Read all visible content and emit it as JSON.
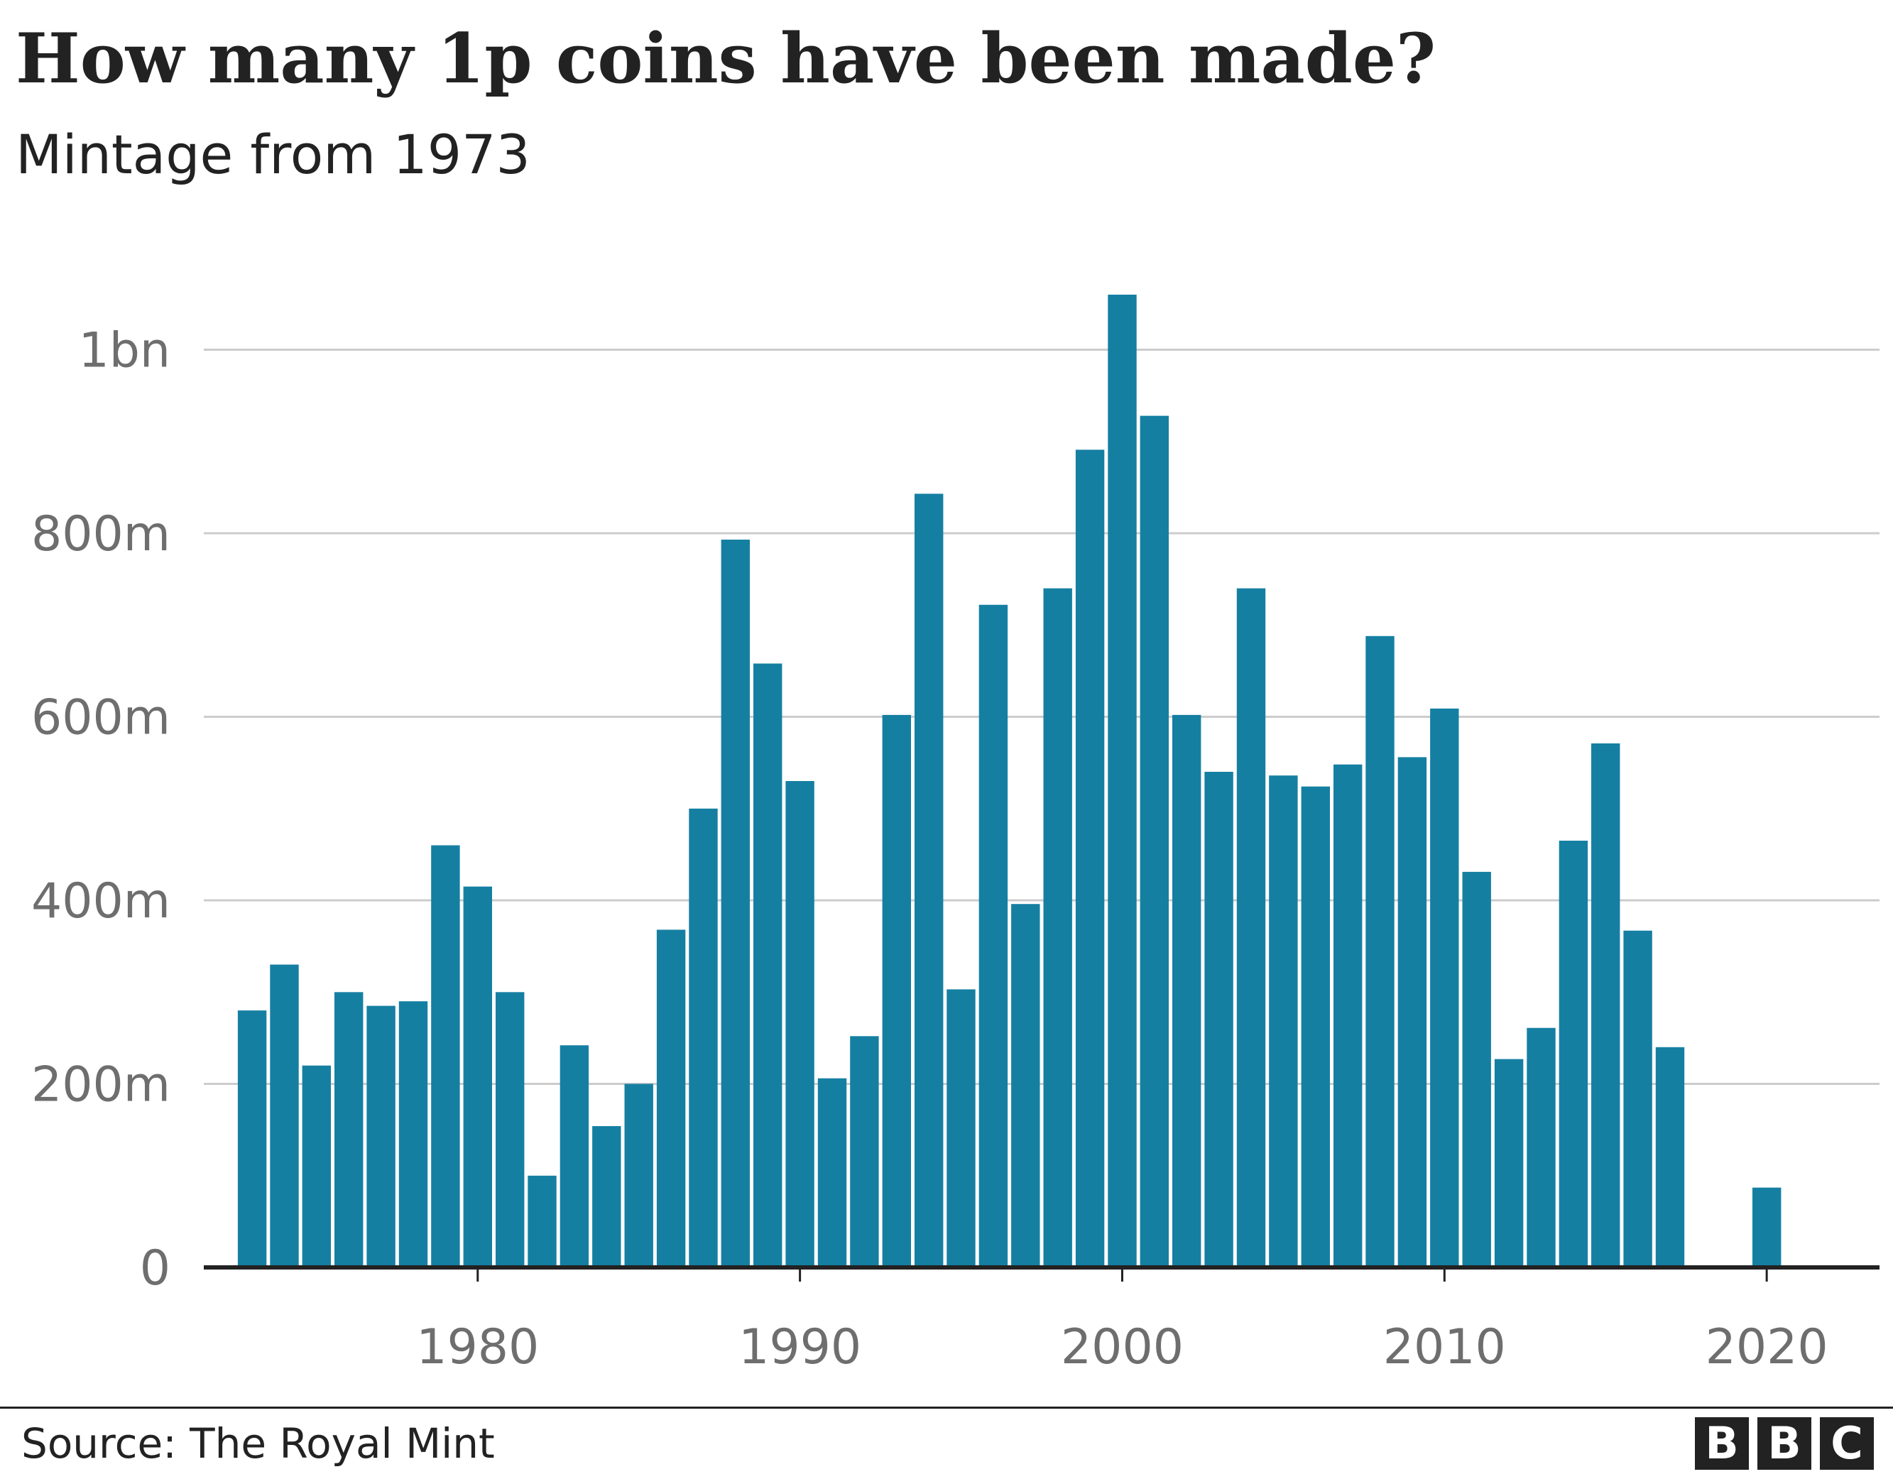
{
  "title": "How many 1p coins have been made?",
  "subtitle": "Mintage from 1973",
  "source": "Source: The Royal Mint",
  "logo": {
    "letters": [
      "B",
      "B",
      "C"
    ],
    "name": "BBC"
  },
  "colors": {
    "bar": "#157fa2",
    "grid": "#cccccc",
    "axis": "#222222",
    "tick_text": "#6e6e6e",
    "text": "#222222"
  },
  "chart_data": {
    "type": "bar",
    "title": "How many 1p coins have been made?",
    "subtitle": "Mintage from 1973",
    "xlabel": "",
    "ylabel": "",
    "unit": "coins (millions)",
    "xlim": [
      1971.5,
      2023.5
    ],
    "ylim": [
      0,
      1100
    ],
    "grid": true,
    "legend": "none",
    "yticks": [
      {
        "value": 0,
        "label": "0"
      },
      {
        "value": 200,
        "label": "200m"
      },
      {
        "value": 400,
        "label": "400m"
      },
      {
        "value": 600,
        "label": "600m"
      },
      {
        "value": 800,
        "label": "800m"
      },
      {
        "value": 1000,
        "label": "1bn"
      }
    ],
    "xticks": [
      {
        "value": 1980,
        "label": "1980"
      },
      {
        "value": 1990,
        "label": "1990"
      },
      {
        "value": 2000,
        "label": "2000"
      },
      {
        "value": 2010,
        "label": "2010"
      },
      {
        "value": 2020,
        "label": "2020"
      }
    ],
    "categories": [
      1973,
      1974,
      1975,
      1976,
      1977,
      1978,
      1979,
      1980,
      1981,
      1982,
      1983,
      1984,
      1985,
      1986,
      1987,
      1988,
      1989,
      1990,
      1991,
      1992,
      1993,
      1994,
      1995,
      1996,
      1997,
      1998,
      1999,
      2000,
      2001,
      2002,
      2003,
      2004,
      2005,
      2006,
      2007,
      2008,
      2009,
      2010,
      2011,
      2012,
      2013,
      2014,
      2015,
      2016,
      2017,
      2018,
      2019,
      2020
    ],
    "values": [
      280,
      330,
      220,
      300,
      285,
      290,
      460,
      415,
      300,
      100,
      242,
      154,
      200,
      368,
      500,
      793,
      658,
      530,
      206,
      252,
      602,
      843,
      303,
      722,
      396,
      740,
      891,
      1060,
      928,
      602,
      540,
      740,
      536,
      524,
      548,
      688,
      556,
      609,
      431,
      227,
      261,
      465,
      571,
      367,
      240,
      0,
      0,
      87
    ]
  }
}
